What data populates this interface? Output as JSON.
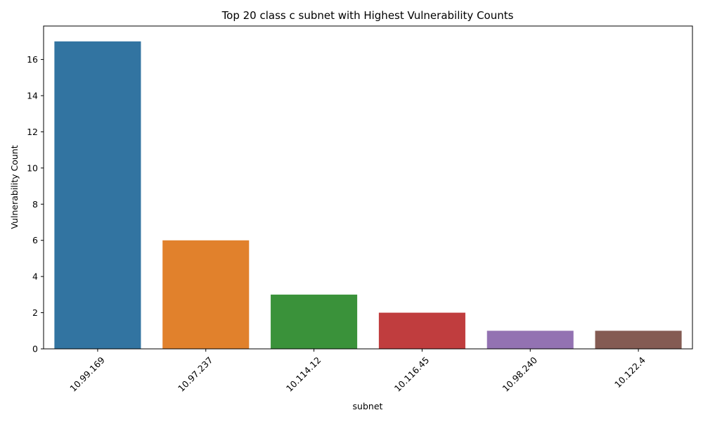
{
  "chart_data": {
    "type": "bar",
    "title": "Top 20 class c subnet  with Highest Vulnerability Counts",
    "xlabel": "subnet",
    "ylabel": "Vulnerability Count",
    "categories": [
      "10.99.169",
      "10.97.237",
      "10.114.12",
      "10.116.45",
      "10.98.240",
      "10.122.4"
    ],
    "values": [
      17,
      6,
      3,
      2,
      1,
      1
    ],
    "colors": [
      "#3274a1",
      "#e1812c",
      "#3a923a",
      "#c03d3e",
      "#9372b2",
      "#845b53"
    ],
    "ylim": [
      0,
      17.85
    ],
    "yticks": [
      0,
      2,
      4,
      6,
      8,
      10,
      12,
      14,
      16
    ],
    "grid": false,
    "legend": "none"
  }
}
